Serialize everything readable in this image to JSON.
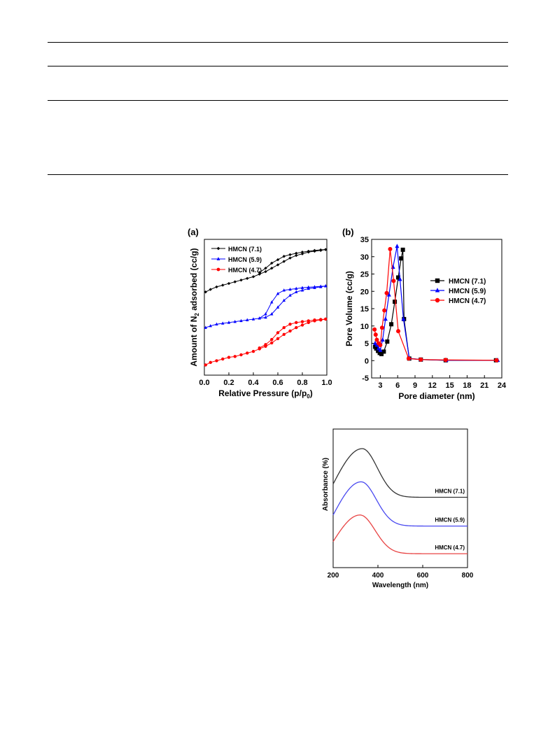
{
  "table_rules": 4,
  "colors": {
    "s71": "#000000",
    "s59": "#0000ff",
    "s47": "#ff0000",
    "uv71": "#333333",
    "uv59": "#4a4af0",
    "uv47": "#e84444"
  },
  "figures": {
    "a": {
      "panel": "(a)"
    },
    "b": {
      "panel": "(b)"
    },
    "c": {
      "panel": ""
    }
  },
  "chart_data": [
    {
      "type": "line",
      "panel": "(a)",
      "xlabel": "Relative Pressure (p/p0)",
      "xlabel_main": "Relative Pressure (p/p",
      "xlabel_sub": "0",
      "xlabel_end": ")",
      "ylabel": "Amount of N2 adsorbed (cc/g)",
      "ylabel_pre": "Amount of N",
      "ylabel_sub": "2",
      "ylabel_post": " adsorbed (cc/g)",
      "xlim": [
        0.0,
        1.0
      ],
      "xticks": [
        "0.0",
        "0.2",
        "0.4",
        "0.6",
        "0.8",
        "1.0"
      ],
      "yticks_shown": false,
      "ylim": [
        0,
        100
      ],
      "legend": "top-left",
      "series": [
        {
          "name": "HMCN (7.1)",
          "marker": "diamond",
          "color": "#000000",
          "adsorption": [
            [
              0.01,
              79
            ],
            [
              0.05,
              80.5
            ],
            [
              0.1,
              82
            ],
            [
              0.15,
              83
            ],
            [
              0.2,
              84
            ],
            [
              0.25,
              85
            ],
            [
              0.3,
              86
            ],
            [
              0.35,
              87
            ],
            [
              0.4,
              88
            ],
            [
              0.45,
              89.5
            ],
            [
              0.5,
              91
            ],
            [
              0.55,
              93
            ],
            [
              0.6,
              95
            ],
            [
              0.65,
              97
            ],
            [
              0.7,
              99
            ],
            [
              0.75,
              100.5
            ],
            [
              0.8,
              101.5
            ],
            [
              0.85,
              102.5
            ],
            [
              0.9,
              103
            ],
            [
              0.95,
              103.5
            ],
            [
              0.99,
              104
            ]
          ],
          "desorption": [
            [
              0.99,
              104
            ],
            [
              0.95,
              103.8
            ],
            [
              0.9,
              103.5
            ],
            [
              0.85,
              103
            ],
            [
              0.8,
              102.5
            ],
            [
              0.75,
              101.8
            ],
            [
              0.7,
              101
            ],
            [
              0.65,
              100
            ],
            [
              0.6,
              98
            ],
            [
              0.55,
              96
            ],
            [
              0.5,
              93
            ],
            [
              0.45,
              90.5
            ]
          ]
        },
        {
          "name": "HMCN (5.9)",
          "marker": "triangle",
          "color": "#0000ff",
          "adsorption": [
            [
              0.01,
              58
            ],
            [
              0.05,
              59
            ],
            [
              0.1,
              60
            ],
            [
              0.15,
              60.5
            ],
            [
              0.2,
              61
            ],
            [
              0.25,
              61.5
            ],
            [
              0.3,
              62
            ],
            [
              0.35,
              62.5
            ],
            [
              0.4,
              63
            ],
            [
              0.45,
              63.5
            ],
            [
              0.5,
              64
            ],
            [
              0.55,
              66
            ],
            [
              0.6,
              70
            ],
            [
              0.65,
              74
            ],
            [
              0.7,
              77
            ],
            [
              0.75,
              79
            ],
            [
              0.8,
              80
            ],
            [
              0.85,
              81
            ],
            [
              0.9,
              81.5
            ],
            [
              0.95,
              82
            ],
            [
              0.99,
              82.5
            ]
          ],
          "desorption": [
            [
              0.99,
              82.5
            ],
            [
              0.95,
              82.3
            ],
            [
              0.9,
              82
            ],
            [
              0.85,
              81.8
            ],
            [
              0.8,
              81.5
            ],
            [
              0.75,
              81
            ],
            [
              0.7,
              80.5
            ],
            [
              0.65,
              80
            ],
            [
              0.6,
              78
            ],
            [
              0.55,
              73
            ],
            [
              0.5,
              66
            ],
            [
              0.45,
              63.5
            ]
          ]
        },
        {
          "name": "HMCN (4.7)",
          "marker": "circle",
          "color": "#ff0000",
          "adsorption": [
            [
              0.01,
              36
            ],
            [
              0.05,
              37.5
            ],
            [
              0.1,
              38.5
            ],
            [
              0.15,
              39.5
            ],
            [
              0.2,
              40.5
            ],
            [
              0.25,
              41
            ],
            [
              0.3,
              42
            ],
            [
              0.35,
              43
            ],
            [
              0.4,
              44
            ],
            [
              0.45,
              45.5
            ],
            [
              0.5,
              47
            ],
            [
              0.55,
              49
            ],
            [
              0.6,
              51.5
            ],
            [
              0.65,
              54
            ],
            [
              0.7,
              56
            ],
            [
              0.75,
              58
            ],
            [
              0.8,
              59.5
            ],
            [
              0.85,
              61
            ],
            [
              0.9,
              62
            ],
            [
              0.95,
              62.5
            ],
            [
              0.99,
              63
            ]
          ],
          "desorption": [
            [
              0.99,
              63
            ],
            [
              0.95,
              62.8
            ],
            [
              0.9,
              62.5
            ],
            [
              0.85,
              62
            ],
            [
              0.8,
              61.5
            ],
            [
              0.75,
              61
            ],
            [
              0.7,
              60
            ],
            [
              0.65,
              58
            ],
            [
              0.6,
              55
            ],
            [
              0.55,
              51
            ],
            [
              0.5,
              48
            ],
            [
              0.45,
              46
            ]
          ]
        }
      ]
    },
    {
      "type": "line",
      "panel": "(b)",
      "xlabel": "Pore diameter (nm)",
      "ylabel": "Pore Volume (cc/g)",
      "xlim": [
        1.5,
        24
      ],
      "ylim": [
        -5,
        35
      ],
      "xticks": [
        3,
        6,
        9,
        12,
        15,
        18,
        21,
        24
      ],
      "yticks": [
        -5,
        0,
        5,
        10,
        15,
        20,
        25,
        30,
        35
      ],
      "legend": "right",
      "series": [
        {
          "name": "HMCN (7.1)",
          "marker": "square",
          "color": "#000000",
          "x": [
            2.1,
            2.3,
            2.6,
            2.9,
            3.2,
            3.6,
            4.2,
            4.9,
            5.5,
            6.1,
            6.6,
            6.9,
            7.1,
            8.0,
            10.0,
            14.3,
            23.0
          ],
          "y": [
            4,
            3.5,
            2.8,
            2.2,
            1.9,
            2.6,
            5.5,
            10.5,
            17.0,
            24.0,
            29.5,
            32.0,
            12.0,
            0.6,
            0.3,
            0.1,
            0.1
          ]
        },
        {
          "name": "HMCN (5.9)",
          "marker": "triangle",
          "color": "#0000ff",
          "x": [
            2.1,
            2.4,
            2.7,
            3.0,
            3.4,
            3.9,
            4.5,
            5.2,
            5.9,
            6.4,
            7.0,
            8.0,
            10.0,
            14.4,
            23.3
          ],
          "y": [
            5,
            4.5,
            3.5,
            3.0,
            6.0,
            12.0,
            19.0,
            27.0,
            33.0,
            23.5,
            12.0,
            0.7,
            0.3,
            0.1,
            0.1
          ]
        },
        {
          "name": "HMCN (4.7)",
          "marker": "circle",
          "color": "#ff0000",
          "x": [
            2.0,
            2.2,
            2.4,
            2.7,
            3.0,
            3.3,
            3.7,
            4.1,
            4.7,
            5.3,
            6.1,
            7.9,
            10.0,
            14.3,
            23.1
          ],
          "y": [
            9,
            7.5,
            6,
            5,
            4.5,
            9.5,
            14.5,
            19.5,
            32.2,
            23.0,
            8.5,
            0.6,
            0.3,
            0.2,
            0.1
          ]
        }
      ]
    },
    {
      "type": "line",
      "panel": "",
      "xlabel": "Wavelength (nm)",
      "ylabel": "Absorbance (%)",
      "xlim": [
        200,
        800
      ],
      "xticks": [
        "200",
        "400",
        "600",
        "800"
      ],
      "yticks_shown": false,
      "ylim": [
        0,
        100
      ],
      "series": [
        {
          "name": "HMCN (7.1)",
          "baseline": 56,
          "peak_x": 330,
          "peak": 100,
          "start": 68,
          "color": "#333333"
        },
        {
          "name": "HMCN (5.9)",
          "baseline": 30,
          "peak_x": 325,
          "peak": 70,
          "start": 40,
          "color": "#4a4af0"
        },
        {
          "name": "HMCN (4.7)",
          "baseline": 5,
          "peak_x": 320,
          "peak": 40,
          "start": 16,
          "color": "#e84444"
        }
      ]
    }
  ]
}
